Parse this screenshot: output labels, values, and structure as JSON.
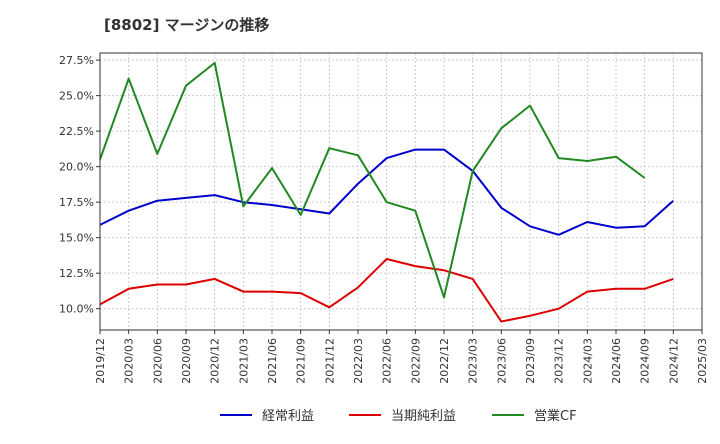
{
  "chart_data": {
    "type": "line",
    "title": "[8802]  マージンの推移",
    "x": [
      "2019/12",
      "2020/03",
      "2020/06",
      "2020/09",
      "2020/12",
      "2021/03",
      "2021/06",
      "2021/09",
      "2021/12",
      "2022/03",
      "2022/06",
      "2022/09",
      "2022/12",
      "2023/03",
      "2023/06",
      "2023/09",
      "2023/12",
      "2024/03",
      "2024/06",
      "2024/09",
      "2024/12",
      "2025/03"
    ],
    "ylim": [
      8.5,
      28.0
    ],
    "yticks": [
      10.0,
      12.5,
      15.0,
      17.5,
      20.0,
      22.5,
      25.0,
      27.5
    ],
    "ytick_labels": [
      "10.0%",
      "12.5%",
      "15.0%",
      "17.5%",
      "20.0%",
      "22.5%",
      "25.0%",
      "27.5%"
    ],
    "grid": true,
    "legend_position": "bottom-center",
    "series": [
      {
        "name": "経常利益",
        "color": "#0000cc",
        "values": [
          15.9,
          16.9,
          17.6,
          17.8,
          18.0,
          17.5,
          17.3,
          17.0,
          16.7,
          18.8,
          20.6,
          21.2,
          21.2,
          19.7,
          17.1,
          15.8,
          15.2,
          16.1,
          15.7,
          15.8,
          17.6,
          null
        ]
      },
      {
        "name": "当期純利益",
        "color": "#dd0000",
        "values": [
          10.3,
          11.4,
          11.7,
          11.7,
          12.1,
          11.2,
          11.2,
          11.1,
          10.1,
          11.5,
          13.5,
          13.0,
          12.7,
          12.1,
          9.1,
          9.5,
          10.0,
          11.2,
          11.4,
          11.4,
          12.1,
          null
        ]
      },
      {
        "name": "営業CF",
        "color": "#228822",
        "values": [
          20.5,
          26.2,
          20.9,
          25.7,
          27.3,
          17.2,
          19.9,
          16.6,
          21.3,
          20.8,
          17.5,
          16.9,
          10.8,
          19.7,
          22.7,
          24.3,
          20.6,
          20.4,
          20.7,
          19.2,
          null,
          null
        ]
      }
    ]
  }
}
